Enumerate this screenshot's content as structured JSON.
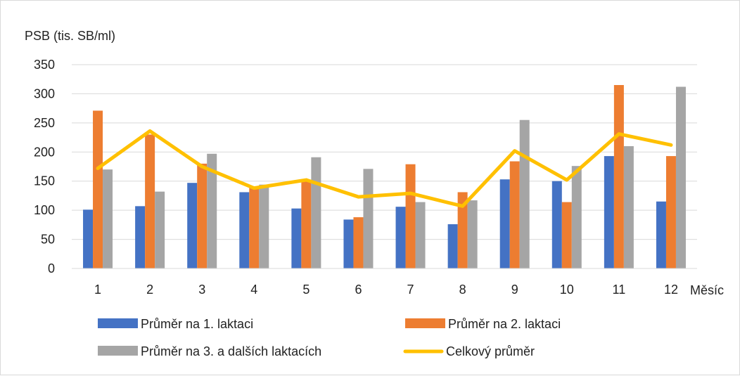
{
  "chart_data": {
    "type": "bar",
    "title": "",
    "ylabel": "PSB (tis. SB/ml)",
    "xlabel": "Měsíc",
    "categories": [
      "1",
      "2",
      "3",
      "4",
      "5",
      "6",
      "7",
      "8",
      "9",
      "10",
      "11",
      "12"
    ],
    "ylim": [
      0,
      350
    ],
    "yticks": [
      0,
      50,
      100,
      150,
      200,
      250,
      300,
      350
    ],
    "grid": true,
    "legend_position": "bottom",
    "series": [
      {
        "name": "Průměr na 1. laktaci",
        "kind": "bar",
        "color": "#4472C4",
        "values": [
          101,
          107,
          147,
          131,
          103,
          84,
          106,
          76,
          153,
          150,
          193,
          115
        ]
      },
      {
        "name": "Průměr na 2. laktaci",
        "kind": "bar",
        "color": "#ED7D31",
        "values": [
          271,
          230,
          180,
          140,
          150,
          88,
          179,
          131,
          184,
          114,
          315,
          193
        ]
      },
      {
        "name": "Průměr na 3. a dalších laktacích",
        "kind": "bar",
        "color": "#A5A5A5",
        "values": [
          170,
          132,
          197,
          144,
          191,
          171,
          114,
          117,
          255,
          176,
          210,
          312
        ]
      },
      {
        "name": "Celkový průměr",
        "kind": "line",
        "color": "#FFC000",
        "values": [
          172,
          236,
          175,
          138,
          152,
          123,
          129,
          107,
          202,
          152,
          231,
          212
        ]
      }
    ]
  }
}
